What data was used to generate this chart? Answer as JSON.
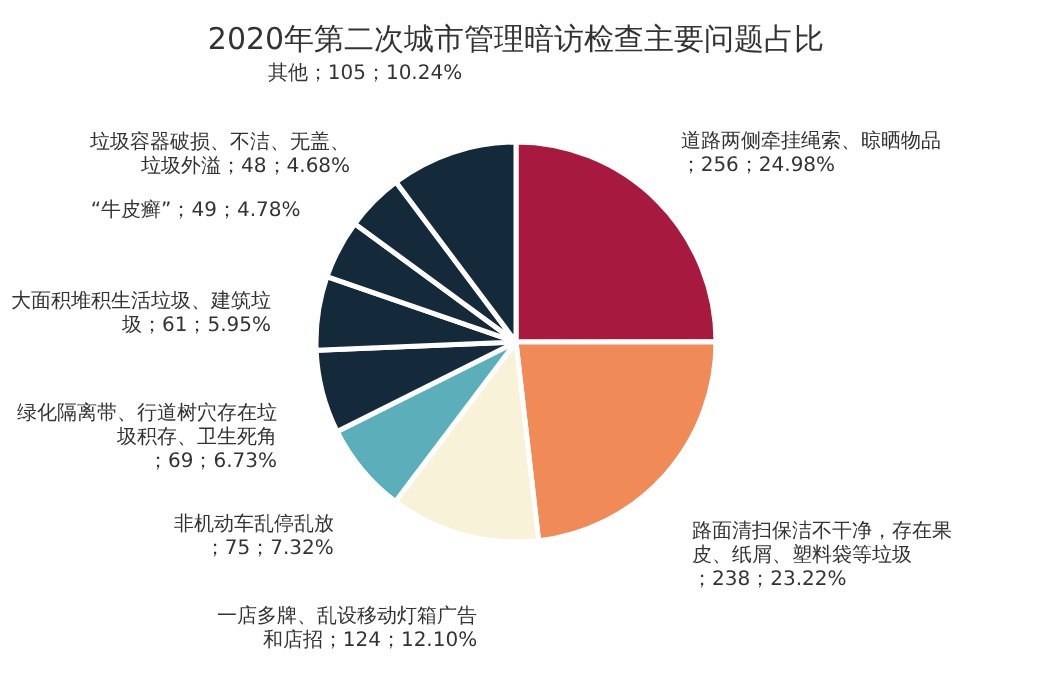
{
  "chart_data": {
    "type": "pie",
    "title": "2020年第二次城市管理暗访检查主要问题占比",
    "categories": [
      "道路两侧牵挂绳索、晾晒物品",
      "路面清扫保洁不干净，存在果皮、纸屑、塑料袋等垃圾",
      "一店多牌、乱设移动灯箱广告和店招",
      "非机动车乱停乱放",
      "绿化隔离带、行道树穴存在垃圾积存、卫生死角",
      "大面积堆积生活垃圾、建筑垃圾",
      "“牛皮癣”",
      "垃圾容器破损、不洁、无盖、垃圾外溢",
      "其他"
    ],
    "values": [
      256,
      238,
      124,
      75,
      69,
      61,
      49,
      48,
      105
    ],
    "value_labels": [
      "；256；24.98%",
      "；238；23.22%",
      "；124；12.10%",
      "；75；7.32%",
      "；69；6.73%",
      "；61；5.95%",
      "；49；4.78%",
      "；48；4.68%",
      "；105；10.24%"
    ],
    "colors": [
      "#a8193f",
      "#f08a57",
      "#f7f2d8",
      "#5aafba",
      "#142a3a",
      "#142a3a",
      "#142a3a",
      "#142a3a",
      "#142a3a"
    ],
    "legend": false
  }
}
